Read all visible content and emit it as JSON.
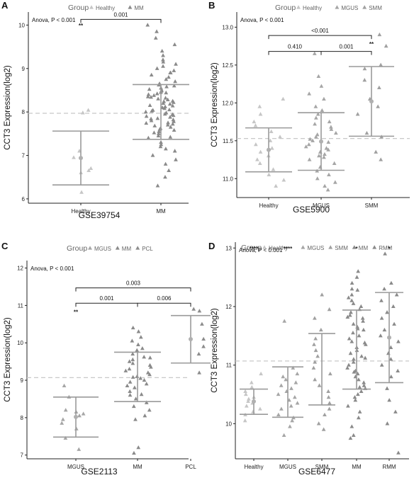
{
  "chart_data": [
    {
      "panel": "A",
      "type": "scatter",
      "legend": {
        "title": "Group",
        "items": [
          "Healthy",
          "MM"
        ]
      },
      "categories": [
        "Healthy",
        "MM"
      ],
      "ylabel": "CCT3 Expression(log2)",
      "xlabel": "GSE39754",
      "ylim": [
        5.9,
        10.3
      ],
      "yticks": [
        "6",
        "7",
        "8",
        "9",
        "10"
      ],
      "reference_line": 7.97,
      "anova_text": "Anova, P < 0.001",
      "summaries": [
        {
          "group": "Healthy",
          "mean": 6.94,
          "upper": 7.56,
          "lower": 6.32,
          "mean_marker": true,
          "sig": "**"
        },
        {
          "group": "MM",
          "mean": 8.0,
          "upper": 8.63,
          "lower": 7.37,
          "mean_marker": false,
          "sig": ""
        }
      ],
      "comparisons": [
        {
          "from": "Healthy",
          "to": "MM",
          "label": "0.001",
          "y": 10.13
        }
      ],
      "points": [
        {
          "group": "Healthy",
          "values": [
            8.04,
            7.98,
            7.1,
            6.95,
            6.7,
            6.65,
            6.6,
            6.15
          ]
        },
        {
          "group": "MM",
          "values": [
            10.0,
            9.85,
            9.7,
            9.55,
            9.4,
            9.3,
            9.2,
            9.15,
            9.05,
            9.0,
            8.95,
            8.9,
            8.85,
            8.8,
            8.75,
            8.7,
            8.65,
            8.6,
            8.55,
            8.5,
            8.45,
            8.4,
            8.35,
            8.3,
            8.25,
            8.2,
            8.15,
            8.1,
            8.05,
            8.0,
            7.95,
            7.9,
            7.85,
            7.8,
            7.75,
            7.7,
            7.65,
            7.6,
            7.55,
            7.5,
            7.45,
            7.4,
            7.3,
            7.2,
            7.1,
            7.0,
            6.9,
            6.8,
            6.65,
            6.5,
            6.3,
            8.62,
            8.52,
            8.42,
            8.32,
            8.22,
            8.12,
            8.02,
            7.92,
            7.82,
            7.72,
            7.62,
            7.52,
            7.42,
            8.58,
            8.48,
            8.38,
            8.28,
            8.18,
            8.08,
            7.98,
            7.88,
            7.78,
            7.68,
            7.58,
            8.44,
            8.34,
            8.24,
            8.14,
            8.04,
            7.94,
            7.84,
            7.74,
            9.1,
            8.9,
            7.25,
            7.15
          ]
        }
      ]
    },
    {
      "panel": "B",
      "type": "scatter",
      "legend": {
        "title": "Group",
        "items": [
          "Healthy",
          "MGUS",
          "SMM"
        ]
      },
      "categories": [
        "Healthy",
        "MGUS",
        "SMM"
      ],
      "ylabel": "CCT3 Expression(log2)",
      "xlabel": "GSE5900",
      "ylim": [
        10.75,
        13.2
      ],
      "yticks": [
        "11.0",
        "11.5",
        "12.0",
        "12.5",
        "13.0"
      ],
      "reference_line": 11.53,
      "anova_text": "Anova, P < 0.001",
      "summaries": [
        {
          "group": "Healthy",
          "mean": 11.38,
          "upper": 11.67,
          "lower": 11.09,
          "mean_marker": true,
          "sig": ""
        },
        {
          "group": "MGUS",
          "mean": 11.49,
          "upper": 11.87,
          "lower": 11.11,
          "mean_marker": true,
          "sig": ""
        },
        {
          "group": "SMM",
          "mean": 12.02,
          "upper": 12.48,
          "lower": 11.56,
          "mean_marker": true,
          "sig": "**"
        }
      ],
      "comparisons": [
        {
          "from": "Healthy",
          "to": "MGUS",
          "label": "0.410",
          "y": 12.68
        },
        {
          "from": "MGUS",
          "to": "SMM",
          "label": "0.001",
          "y": 12.68
        },
        {
          "from": "Healthy",
          "to": "SMM",
          "label": "<0.001",
          "y": 12.89
        }
      ],
      "points": [
        {
          "group": "Healthy",
          "values": [
            12.05,
            11.95,
            11.85,
            11.75,
            11.7,
            11.62,
            11.55,
            11.5,
            11.45,
            11.4,
            11.35,
            11.3,
            11.25,
            11.2,
            11.12,
            11.05,
            10.98,
            10.9
          ]
        },
        {
          "group": "MGUS",
          "values": [
            12.65,
            12.35,
            12.22,
            12.12,
            12.05,
            11.95,
            11.9,
            11.85,
            11.8,
            11.75,
            11.72,
            11.68,
            11.65,
            11.6,
            11.58,
            11.55,
            11.52,
            11.5,
            11.48,
            11.45,
            11.42,
            11.4,
            11.38,
            11.35,
            11.32,
            11.3,
            11.28,
            11.25,
            11.2,
            11.15,
            11.1,
            11.05,
            11.0,
            10.95,
            10.9,
            10.85
          ]
        },
        {
          "group": "SMM",
          "values": [
            12.9,
            12.75,
            12.5,
            12.45,
            12.3,
            12.2,
            12.05,
            11.95,
            11.85,
            11.6,
            11.55,
            11.35,
            11.25
          ]
        }
      ]
    },
    {
      "panel": "C",
      "type": "scatter",
      "legend": {
        "title": "Group",
        "items": [
          "MGUS",
          "MM",
          "PCL"
        ]
      },
      "categories": [
        "MGUS",
        "MM",
        "PCL"
      ],
      "ylabel": "CCT3 Expression(log2)",
      "xlabel": "GSE2113",
      "ylim": [
        6.9,
        12.2
      ],
      "yticks": [
        "7",
        "8",
        "9",
        "10",
        "11",
        "12"
      ],
      "reference_line": 9.07,
      "anova_text": "Anova, P < 0.001",
      "summaries": [
        {
          "group": "MGUS",
          "mean": 8.02,
          "upper": 8.55,
          "lower": 7.48,
          "mean_marker": true,
          "sig": "**"
        },
        {
          "group": "MM",
          "mean": 9.1,
          "upper": 9.75,
          "lower": 8.43,
          "mean_marker": false,
          "sig": ""
        },
        {
          "group": "PCL",
          "mean": 10.1,
          "upper": 10.73,
          "lower": 9.46,
          "mean_marker": true,
          "sig": ""
        }
      ],
      "comparisons": [
        {
          "from": "MGUS",
          "to": "MM",
          "label": "0.001",
          "y": 11.06
        },
        {
          "from": "MM",
          "to": "PCL",
          "label": "0.006",
          "y": 11.06
        },
        {
          "from": "MGUS",
          "to": "PCL",
          "label": "0.003",
          "y": 11.47
        }
      ],
      "points": [
        {
          "group": "MGUS",
          "values": [
            8.85,
            8.55,
            8.2,
            8.15,
            8.1,
            8.05,
            7.95,
            7.85,
            7.7,
            7.45,
            7.15
          ]
        },
        {
          "group": "MM",
          "values": [
            10.4,
            10.3,
            10.15,
            10.05,
            9.95,
            9.85,
            9.8,
            9.7,
            9.6,
            9.55,
            9.5,
            9.45,
            9.4,
            9.35,
            9.3,
            9.25,
            9.2,
            9.15,
            9.1,
            9.05,
            9.0,
            8.95,
            8.9,
            8.85,
            8.8,
            8.7,
            8.6,
            8.5,
            8.4,
            8.3,
            8.2,
            8.05,
            7.95,
            7.2,
            7.05,
            9.62,
            9.08,
            8.62
          ]
        },
        {
          "group": "PCL",
          "values": [
            10.9,
            10.85,
            10.5,
            10.1,
            9.9,
            9.7,
            9.2
          ]
        }
      ]
    },
    {
      "panel": "D",
      "type": "scatter",
      "legend": {
        "title": "Group",
        "items": [
          "Healthy",
          "MGUS",
          "SMM",
          "MM",
          "RMM"
        ]
      },
      "categories": [
        "Healthy",
        "MGUS",
        "SMM",
        "MM",
        "RMM"
      ],
      "ylabel": "CCT3 Expression(log2)",
      "xlabel": "GSE6477",
      "ylim": [
        9.4,
        13.1
      ],
      "yticks": [
        "10",
        "11",
        "12",
        "13"
      ],
      "reference_line": 11.07,
      "anova_text": "Anova, P < 0.001",
      "summaries": [
        {
          "group": "Healthy",
          "mean": 10.38,
          "upper": 10.59,
          "lower": 10.16,
          "mean_marker": true,
          "sig": "****"
        },
        {
          "group": "MGUS",
          "mean": 10.53,
          "upper": 10.97,
          "lower": 10.11,
          "mean_marker": false,
          "sig": "****"
        },
        {
          "group": "SMM",
          "mean": 10.93,
          "upper": 11.54,
          "lower": 10.32,
          "mean_marker": false,
          "sig": ""
        },
        {
          "group": "MM",
          "mean": 11.27,
          "upper": 11.94,
          "lower": 10.59,
          "mean_marker": false,
          "sig": "*"
        },
        {
          "group": "RMM",
          "mean": 11.47,
          "upper": 12.24,
          "lower": 10.7,
          "mean_marker": true,
          "sig": "*"
        }
      ],
      "comparisons": [],
      "points": [
        {
          "group": "Healthy",
          "values": [
            10.85,
            10.7,
            10.62,
            10.55,
            10.5,
            10.45,
            10.42,
            10.38,
            10.35,
            10.3,
            10.25,
            10.2,
            10.15,
            10.05
          ]
        },
        {
          "group": "MGUS",
          "values": [
            11.75,
            10.95,
            10.85,
            10.8,
            10.75,
            10.7,
            10.65,
            10.6,
            10.55,
            10.5,
            10.45,
            10.4,
            10.35,
            10.3,
            10.25,
            10.15,
            10.1,
            10.05,
            9.95,
            9.8
          ]
        },
        {
          "group": "SMM",
          "values": [
            12.2,
            11.95,
            11.8,
            11.6,
            11.45,
            11.35,
            11.25,
            11.15,
            11.05,
            10.95,
            10.85,
            10.75,
            10.65,
            10.55,
            10.45,
            10.35,
            10.25,
            10.15,
            10.0,
            9.9
          ]
        },
        {
          "group": "MM",
          "values": [
            12.6,
            12.5,
            12.4,
            12.3,
            12.2,
            12.15,
            12.1,
            12.05,
            12.0,
            11.95,
            11.9,
            11.85,
            11.8,
            11.75,
            11.7,
            11.65,
            11.6,
            11.55,
            11.5,
            11.45,
            11.4,
            11.35,
            11.3,
            11.25,
            11.2,
            11.15,
            11.1,
            11.05,
            11.0,
            10.95,
            10.9,
            10.85,
            10.8,
            10.75,
            10.7,
            10.65,
            10.6,
            10.55,
            10.5,
            10.45,
            10.4,
            10.3,
            10.2,
            10.1,
            9.95,
            9.8,
            9.75,
            11.62,
            11.38,
            11.12,
            10.88,
            10.62,
            11.82,
            12.28
          ]
        },
        {
          "group": "RMM",
          "values": [
            12.9,
            12.4,
            12.3,
            12.2,
            12.1,
            12.0,
            11.9,
            11.8,
            11.7,
            11.6,
            11.5,
            11.4,
            11.3,
            11.2,
            11.1,
            11.0,
            10.9,
            10.8,
            10.6,
            10.4,
            10.2,
            10.0,
            9.5
          ]
        }
      ]
    }
  ]
}
